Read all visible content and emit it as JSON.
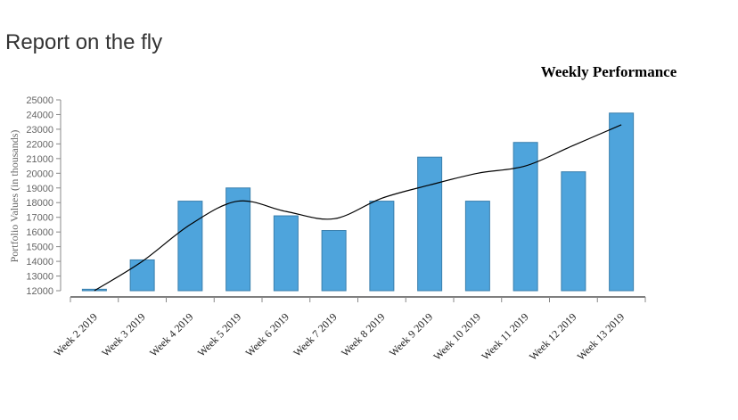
{
  "page": {
    "title": "Report on the fly"
  },
  "chart_data": {
    "type": "bar",
    "title": "Weekly Performance",
    "xlabel": "",
    "ylabel": "Portfolio Values (in thousands)",
    "categories": [
      "Week 2 2019",
      "Week 3 2019",
      "Week 4 2019",
      "Week 5 2019",
      "Week 6 2019",
      "Week 7 2019",
      "Week 8 2019",
      "Week 9 2019",
      "Week 10 2019",
      "Week 11 2019",
      "Week 12 2019",
      "Week 13 2019"
    ],
    "series": [
      {
        "type": "bar",
        "values": [
          12100,
          14100,
          18100,
          19000,
          17100,
          16100,
          18100,
          21100,
          18100,
          22100,
          20100,
          24100
        ]
      }
    ],
    "trend_line": [
      12000,
      14000,
      16500,
      18100,
      17400,
      16900,
      18300,
      19200,
      20000,
      20500,
      21900,
      23300
    ],
    "ylim": [
      12000,
      25000
    ],
    "yticks": [
      12000,
      13000,
      14000,
      15000,
      16000,
      17000,
      18000,
      19000,
      20000,
      21000,
      22000,
      23000,
      24000,
      25000
    ],
    "grid": false,
    "colors": {
      "bar_fill": "#4ea4dc",
      "bar_stroke": "#3a7fad",
      "line": "#000000",
      "axis": "#888888"
    }
  }
}
